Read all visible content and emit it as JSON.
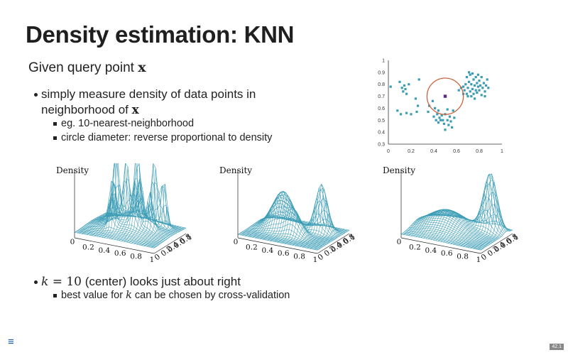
{
  "slide": {
    "title": "Density estimation: KNN",
    "lead_text": "Given query point ",
    "lead_var": "x",
    "bullet1_line1": "simply measure density of data points in",
    "bullet1_line2": "neighborhood of ",
    "bullet1_var": "x",
    "sub1": "eg. 10-nearest-neighborhood",
    "sub2": "circle diameter: reverse proportional to density",
    "bullet2_math_k": "k",
    "bullet2_math_eq": " = 10",
    "bullet2_text": " (center) looks just about right",
    "sub3_pre": "best value for ",
    "sub3_var": "k",
    "sub3_post": " can be chosen by cross-validation",
    "page_number": "42.1",
    "menu_icon": "≡"
  },
  "colors": {
    "data": "#3a9cb5",
    "circle": "#c8643c",
    "query": "#5a2a8a"
  },
  "surface_plots": [
    {
      "ylabel": "Density",
      "peaks": "very spiky"
    },
    {
      "ylabel": "Density",
      "peaks": "moderate"
    },
    {
      "ylabel": "Density",
      "peaks": "smooth"
    }
  ],
  "surface_axis": {
    "x_ticks": [
      "0",
      "0.2",
      "0.4",
      "0.6",
      "0.8",
      "1"
    ],
    "y_ticks": [
      "0",
      "0.2",
      "0.4",
      "0.6",
      "0.8",
      "1"
    ]
  },
  "chart_data": {
    "type": "scatter",
    "xlim": [
      0,
      1
    ],
    "ylim": [
      0.3,
      1
    ],
    "x_ticks": [
      "0",
      "0.2",
      "0.4",
      "0.6",
      "0.8",
      "1"
    ],
    "y_ticks": [
      "0.3",
      "0.4",
      "0.5",
      "0.6",
      "0.7",
      "0.8",
      "0.9",
      "1"
    ],
    "query_point": [
      0.5,
      0.7
    ],
    "circle_radius_x": 0.16,
    "points": [
      [
        0.02,
        0.78
      ],
      [
        0.1,
        0.82
      ],
      [
        0.12,
        0.77
      ],
      [
        0.13,
        0.74
      ],
      [
        0.14,
        0.79
      ],
      [
        0.15,
        0.76
      ],
      [
        0.16,
        0.72
      ],
      [
        0.18,
        0.8
      ],
      [
        0.08,
        0.58
      ],
      [
        0.11,
        0.55
      ],
      [
        0.16,
        0.56
      ],
      [
        0.2,
        0.55
      ],
      [
        0.24,
        0.68
      ],
      [
        0.26,
        0.62
      ],
      [
        0.27,
        0.84
      ],
      [
        0.25,
        0.57
      ],
      [
        0.35,
        0.57
      ],
      [
        0.36,
        0.62
      ],
      [
        0.39,
        0.66
      ],
      [
        0.4,
        0.53
      ],
      [
        0.42,
        0.5
      ],
      [
        0.43,
        0.55
      ],
      [
        0.44,
        0.48
      ],
      [
        0.45,
        0.52
      ],
      [
        0.46,
        0.5
      ],
      [
        0.47,
        0.54
      ],
      [
        0.48,
        0.5
      ],
      [
        0.49,
        0.47
      ],
      [
        0.5,
        0.55
      ],
      [
        0.5,
        0.42
      ],
      [
        0.52,
        0.5
      ],
      [
        0.53,
        0.46
      ],
      [
        0.54,
        0.53
      ],
      [
        0.55,
        0.49
      ],
      [
        0.56,
        0.44
      ],
      [
        0.58,
        0.52
      ],
      [
        0.52,
        0.59
      ],
      [
        0.41,
        0.6
      ],
      [
        0.44,
        0.58
      ],
      [
        0.57,
        0.58
      ],
      [
        0.66,
        0.78
      ],
      [
        0.67,
        0.75
      ],
      [
        0.68,
        0.8
      ],
      [
        0.69,
        0.72
      ],
      [
        0.7,
        0.77
      ],
      [
        0.71,
        0.82
      ],
      [
        0.72,
        0.74
      ],
      [
        0.73,
        0.8
      ],
      [
        0.73,
        0.7
      ],
      [
        0.74,
        0.76
      ],
      [
        0.75,
        0.84
      ],
      [
        0.75,
        0.72
      ],
      [
        0.76,
        0.79
      ],
      [
        0.77,
        0.75
      ],
      [
        0.77,
        0.86
      ],
      [
        0.78,
        0.81
      ],
      [
        0.78,
        0.73
      ],
      [
        0.79,
        0.78
      ],
      [
        0.8,
        0.83
      ],
      [
        0.8,
        0.75
      ],
      [
        0.81,
        0.79
      ],
      [
        0.82,
        0.86
      ],
      [
        0.82,
        0.71
      ],
      [
        0.83,
        0.77
      ],
      [
        0.84,
        0.81
      ],
      [
        0.85,
        0.74
      ],
      [
        0.86,
        0.79
      ],
      [
        0.87,
        0.84
      ],
      [
        0.72,
        0.88
      ],
      [
        0.74,
        0.89
      ],
      [
        0.79,
        0.88
      ],
      [
        0.69,
        0.86
      ],
      [
        0.85,
        0.7
      ],
      [
        0.76,
        0.68
      ],
      [
        0.71,
        0.9
      ],
      [
        0.66,
        0.72
      ],
      [
        0.64,
        0.77
      ],
      [
        0.88,
        0.77
      ],
      [
        0.62,
        0.75
      ],
      [
        0.7,
        0.7
      ]
    ]
  }
}
